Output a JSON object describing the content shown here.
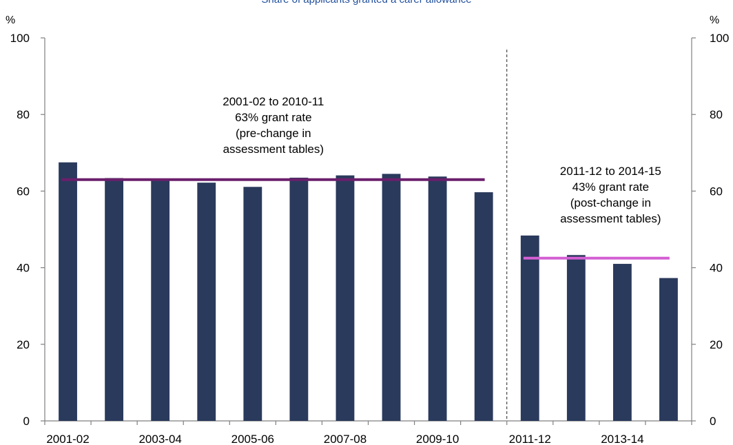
{
  "chart_data": {
    "type": "bar",
    "title": "Share of applicants granted a carer allowance",
    "y_unit_left": "%",
    "y_unit_right": "%",
    "ylim": [
      0,
      100
    ],
    "y_ticks": [
      0,
      20,
      40,
      60,
      80,
      100
    ],
    "categories": [
      "2001-02",
      "2002-03",
      "2003-04",
      "2004-05",
      "2005-06",
      "2006-07",
      "2007-08",
      "2008-09",
      "2009-10",
      "2010-11",
      "2011-12",
      "2012-13",
      "2013-14",
      "2014-15"
    ],
    "x_tick_labels": [
      "2001-02",
      "2003-04",
      "2005-06",
      "2007-08",
      "2009-10",
      "2011-12",
      "2013-14"
    ],
    "series": [
      {
        "values": [
          67.5,
          63.4,
          63.3,
          62.2,
          61.1,
          63.5,
          64.1,
          64.5,
          63.8,
          59.7,
          48.4,
          43.3,
          41.0,
          37.3
        ]
      }
    ],
    "bar_color": "#2a3a5c",
    "divider_after_category": "2010-11",
    "averages": [
      {
        "from": "2001-02",
        "to": "2010-11",
        "value": 63,
        "color": "#6b1f6b"
      },
      {
        "from": "2011-12",
        "to": "2014-15",
        "value": 42.5,
        "color": "#d35fd3"
      }
    ],
    "annotations": [
      {
        "lines": [
          "2001-02 to 2010-11",
          "63% grant rate",
          "(pre-change in",
          "assessment tables)"
        ]
      },
      {
        "lines": [
          "2011-12 to 2014-15",
          "43% grant rate",
          "(post-change in",
          "assessment tables)"
        ]
      }
    ],
    "grid": false
  }
}
